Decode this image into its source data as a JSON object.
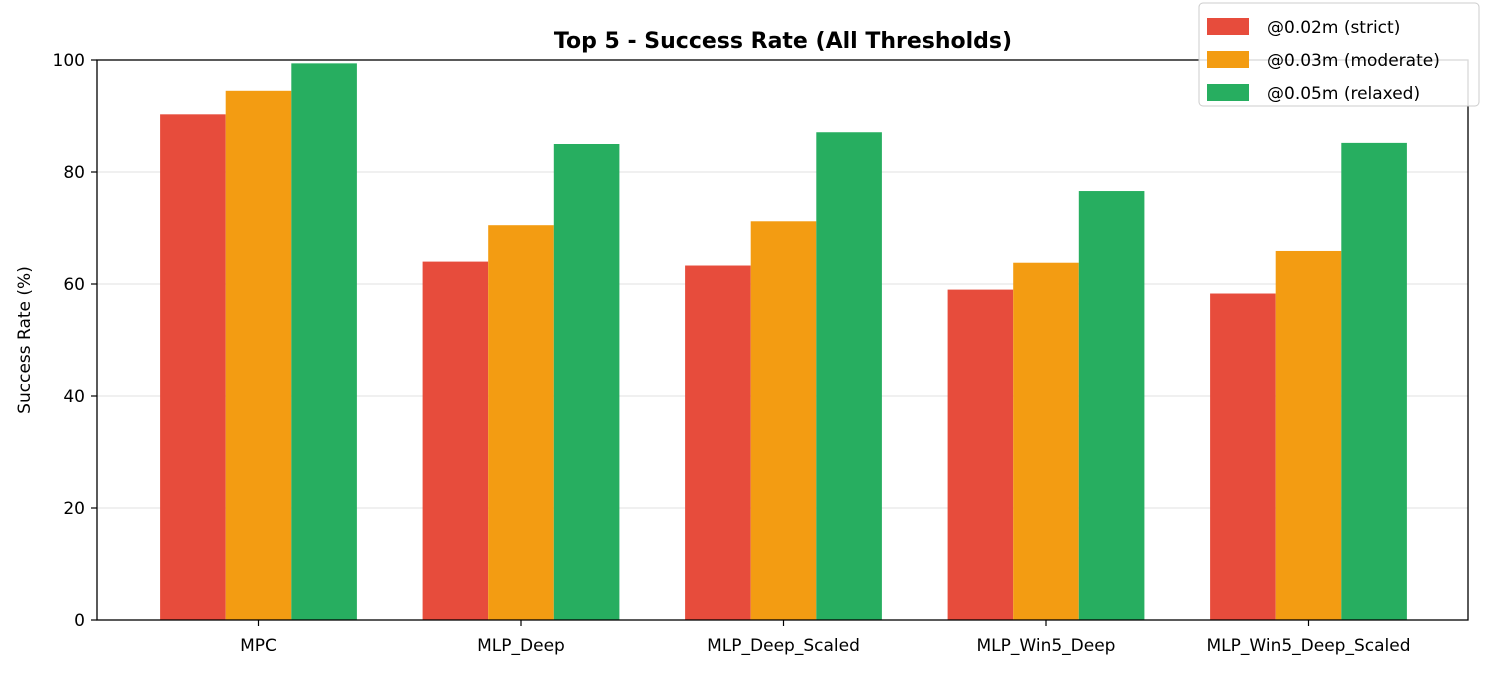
{
  "chart_data": {
    "type": "bar",
    "title": "Top 5 - Success Rate (All Thresholds)",
    "xlabel": "",
    "ylabel": "Success Rate (%)",
    "ylim": [
      0,
      100
    ],
    "yticks": [
      0,
      20,
      40,
      60,
      80,
      100
    ],
    "grid": "y-axis horizontal lines",
    "legend_position": "top-right",
    "categories": [
      "MPC",
      "MLP_Deep",
      "MLP_Deep_Scaled",
      "MLP_Win5_Deep",
      "MLP_Win5_Deep_Scaled"
    ],
    "series": [
      {
        "name": "@0.02m (strict)",
        "color": "#e74c3c",
        "values": [
          90.3,
          64.0,
          63.3,
          59.0,
          58.3
        ]
      },
      {
        "name": "@0.03m (moderate)",
        "color": "#f39c12",
        "values": [
          94.5,
          70.5,
          71.2,
          63.8,
          65.9
        ]
      },
      {
        "name": "@0.05m (relaxed)",
        "color": "#27ae60",
        "values": [
          99.4,
          85.0,
          87.1,
          76.6,
          85.2
        ]
      }
    ]
  }
}
